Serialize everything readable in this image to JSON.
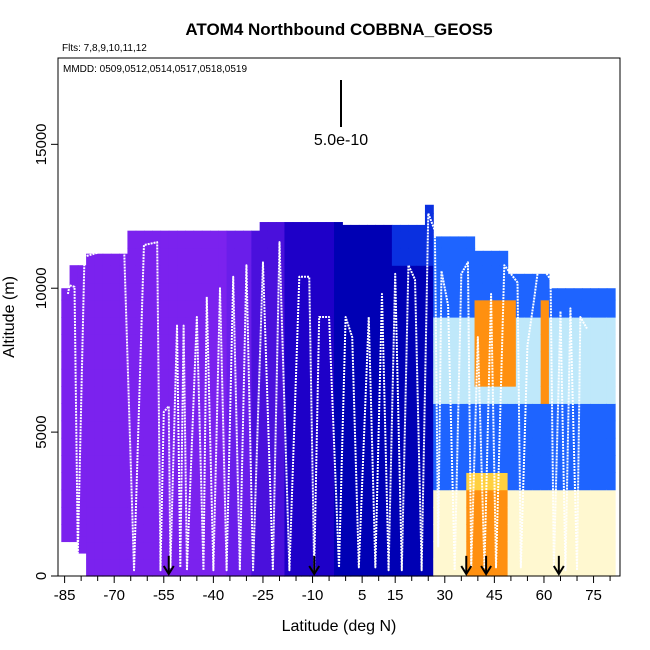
{
  "chart_data": {
    "type": "heatmap",
    "title": "ATOM4 Northbound COBBNA_GEOS5",
    "subtitle_flights": "Flts: 7,8,9,10,11,12",
    "subtitle_dates": "MMDD: 0509,0512,0514,0517,0518,0519",
    "xlabel": "Latitude (deg N)",
    "ylabel": "Altitude (m)",
    "xlim": [
      -87,
      83
    ],
    "ylim": [
      0,
      18000
    ],
    "x_ticks": [
      -85,
      -70,
      -55,
      -40,
      -25,
      -10,
      5,
      15,
      30,
      45,
      60,
      75
    ],
    "x_minor_ticks": [
      -80,
      -75,
      -65,
      -60,
      -50,
      -45,
      -35,
      -30,
      -20,
      -15,
      -5,
      0,
      10,
      20,
      25,
      35,
      40,
      50,
      55,
      65,
      70,
      80
    ],
    "y_ticks": [
      0,
      5000,
      10000,
      15000
    ],
    "scale_bar_label": "5.0e-10",
    "arrow_latitudes": [
      -53.5,
      -9.5,
      36.5,
      42.5,
      64.5
    ],
    "colors": {
      "low": "#7b22ee",
      "low_mid": "#1e00c8",
      "mid": "#0000b4",
      "blue": "#1e64ff",
      "light_blue": "#bfe8fa",
      "pale": "#fff8d0",
      "yellow": "#ffd040",
      "orange": "#ff9010",
      "red": "#e02010"
    },
    "grid": false,
    "legend": "none"
  }
}
